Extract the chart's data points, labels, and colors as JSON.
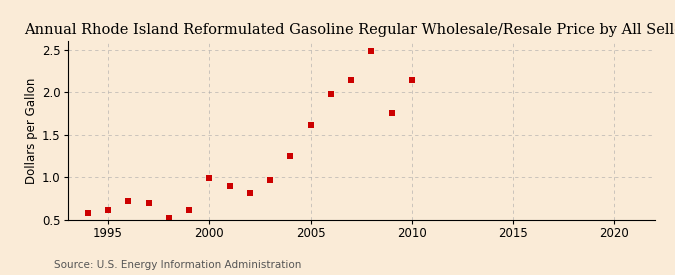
{
  "title": "Annual Rhode Island Reformulated Gasoline Regular Wholesale/Resale Price by All Sellers",
  "ylabel": "Dollars per Gallon",
  "source": "Source: U.S. Energy Information Administration",
  "years": [
    1994,
    1995,
    1996,
    1997,
    1998,
    1999,
    2000,
    2001,
    2002,
    2003,
    2004,
    2005,
    2006,
    2007,
    2008,
    2009,
    2010
  ],
  "values": [
    0.58,
    0.62,
    0.72,
    0.7,
    0.52,
    0.62,
    0.99,
    0.9,
    0.82,
    0.97,
    1.25,
    1.62,
    1.98,
    2.15,
    2.48,
    1.76,
    2.15
  ],
  "xlim": [
    1993,
    2022
  ],
  "ylim": [
    0.5,
    2.6
  ],
  "xticks": [
    1995,
    2000,
    2005,
    2010,
    2015,
    2020
  ],
  "yticks": [
    0.5,
    1.0,
    1.5,
    2.0,
    2.5
  ],
  "marker_color": "#cc0000",
  "marker_size": 4,
  "background_color": "#faebd7",
  "grid_color": "#aaaaaa",
  "title_fontsize": 10.5,
  "label_fontsize": 8.5,
  "source_fontsize": 7.5,
  "vgrid_positions": [
    1995,
    2000,
    2005,
    2010,
    2015,
    2020
  ]
}
